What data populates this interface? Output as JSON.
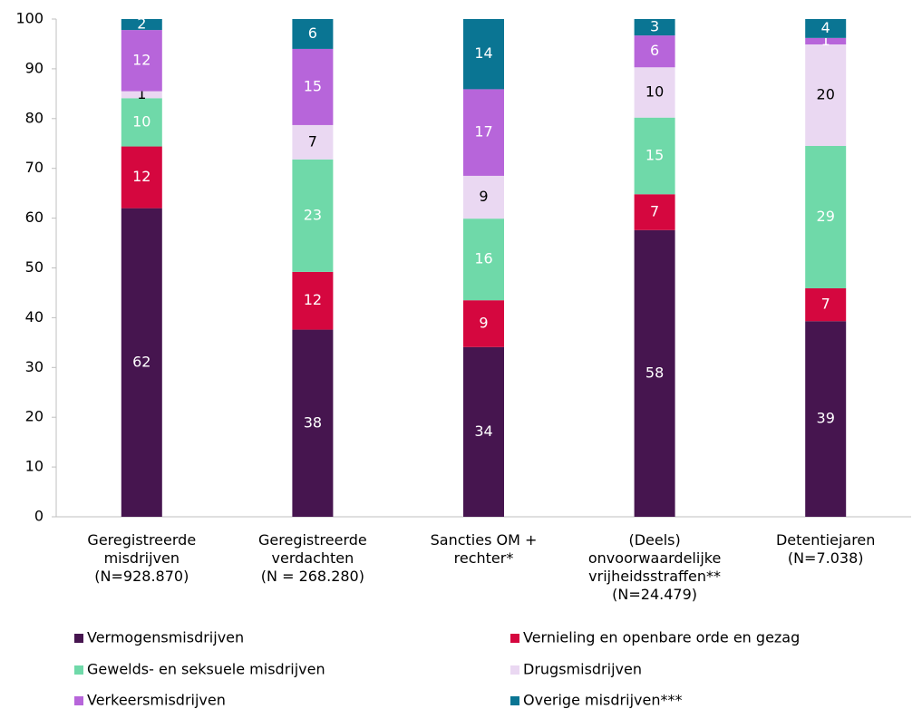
{
  "chart_data": {
    "type": "stacked_bar",
    "categories": [
      "Geregistreerde\nmisdrijven\n(N=928.870)",
      "Geregistreerde\nverdachten\n(N = 268.280)",
      "Sancties OM +\nrechter*",
      "(Deels)\nonvoorwaardelijke\nvrijheidsstraffen**\n(N=24.479)",
      "Detentiejaren\n(N=7.038)"
    ],
    "series": [
      {
        "name": "Vermogensmisdrijven",
        "color": "#46154f",
        "label_color": "#ffffff",
        "values": [
          62.0,
          37.6,
          34.1,
          57.6,
          39.3
        ],
        "value_labels": [
          "62",
          "38",
          "34",
          "58",
          "39"
        ]
      },
      {
        "name": "Vernieling en openbare orde en gezag",
        "color": "#d5073f",
        "label_color": "#ffffff",
        "values": [
          12.4,
          11.6,
          9.4,
          7.2,
          6.6
        ],
        "value_labels": [
          "12",
          "12",
          "9",
          "7",
          "7"
        ]
      },
      {
        "name": "Gewelds- en seksuele misdrijven",
        "color": "#6fd9a9",
        "label_color": "#ffffff",
        "values": [
          9.7,
          22.6,
          16.4,
          15.4,
          28.6
        ],
        "value_labels": [
          "10",
          "23",
          "16",
          "15",
          "29"
        ]
      },
      {
        "name": "Drugsmisdrijven",
        "color": "#ead8f2",
        "label_color": "#000000",
        "values": [
          1.4,
          6.9,
          8.6,
          10.1,
          20.4
        ],
        "value_labels": [
          "1",
          "7",
          "9",
          "10",
          "20"
        ]
      },
      {
        "name": "Verkeersmisdrijven",
        "color": "#b765da",
        "label_color": "#ffffff",
        "values": [
          12.3,
          15.3,
          17.4,
          6.4,
          1.3
        ],
        "value_labels": [
          "12",
          "15",
          "17",
          "6",
          "1"
        ]
      },
      {
        "name": "Overige misdrijven***",
        "color": "#0a7593",
        "label_color": "#ffffff",
        "values": [
          2.2,
          6.0,
          14.1,
          3.3,
          3.8
        ],
        "value_labels": [
          "2",
          "6",
          "14",
          "3",
          "4"
        ]
      }
    ],
    "ylim": [
      0,
      100
    ],
    "yticks": [
      0,
      10,
      20,
      30,
      40,
      50,
      60,
      70,
      80,
      90,
      100
    ],
    "grid": false
  }
}
